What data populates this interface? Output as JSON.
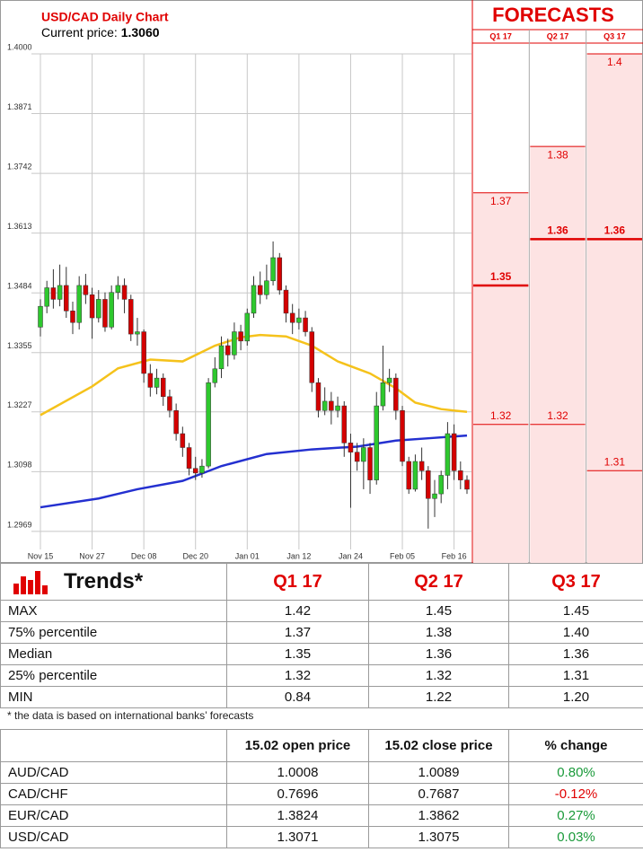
{
  "chart_data": [
    {
      "type": "candlestick",
      "title": "USD/CAD Daily Chart",
      "price_label": "Current price:",
      "current_price": "1.3060",
      "categories": [
        "Nov 15",
        null,
        null,
        null,
        null,
        null,
        null,
        null,
        "Nov 27",
        null,
        null,
        null,
        null,
        null,
        null,
        null,
        "Dec 08",
        null,
        null,
        null,
        null,
        null,
        null,
        null,
        "Dec 20",
        null,
        null,
        null,
        null,
        null,
        null,
        null,
        "Jan 01",
        null,
        null,
        null,
        null,
        null,
        null,
        null,
        "Jan 12",
        null,
        null,
        null,
        null,
        null,
        null,
        null,
        "Jan 24",
        null,
        null,
        null,
        null,
        null,
        null,
        null,
        "Feb 05",
        null,
        null,
        null,
        null,
        null,
        null,
        null,
        "Feb 16",
        null,
        null
      ],
      "open": [
        1.341,
        1.3455,
        1.3495,
        1.347,
        1.35,
        1.3445,
        1.342,
        1.35,
        1.348,
        1.343,
        1.347,
        1.341,
        1.3485,
        1.35,
        1.347,
        1.3395,
        1.34,
        1.331,
        1.328,
        1.33,
        1.326,
        1.323,
        1.318,
        1.315,
        1.3105,
        1.3095,
        1.311,
        1.329,
        1.332,
        1.337,
        1.335,
        1.34,
        1.338,
        1.344,
        1.35,
        1.348,
        1.351,
        1.356,
        1.349,
        1.344,
        1.342,
        1.343,
        1.34,
        1.329,
        1.323,
        1.325,
        1.323,
        1.324,
        1.316,
        1.314,
        1.312,
        1.315,
        1.308,
        1.324,
        1.329,
        1.33,
        1.323,
        1.312,
        1.306,
        1.312,
        1.31,
        1.304,
        1.305,
        1.309,
        1.318,
        1.31,
        1.308
      ],
      "high": [
        1.347,
        1.351,
        1.3535,
        1.3545,
        1.354,
        1.3465,
        1.352,
        1.3525,
        1.3495,
        1.349,
        1.3485,
        1.35,
        1.352,
        1.3515,
        1.348,
        1.343,
        1.3405,
        1.333,
        1.332,
        1.331,
        1.3275,
        1.3245,
        1.3195,
        1.316,
        1.313,
        1.3125,
        1.33,
        1.3345,
        1.339,
        1.3385,
        1.342,
        1.3415,
        1.345,
        1.352,
        1.353,
        1.3545,
        1.3595,
        1.357,
        1.35,
        1.346,
        1.345,
        1.3445,
        1.341,
        1.33,
        1.328,
        1.327,
        1.326,
        1.325,
        1.318,
        1.316,
        1.317,
        1.316,
        1.327,
        1.337,
        1.332,
        1.331,
        1.324,
        1.313,
        1.3135,
        1.315,
        1.311,
        1.308,
        1.31,
        1.3205,
        1.32,
        1.312,
        1.309
      ],
      "low": [
        1.339,
        1.344,
        1.345,
        1.3455,
        1.343,
        1.3395,
        1.3405,
        1.346,
        1.3385,
        1.342,
        1.34,
        1.3405,
        1.347,
        1.344,
        1.338,
        1.337,
        1.329,
        1.326,
        1.3265,
        1.324,
        1.3215,
        1.3165,
        1.313,
        1.309,
        1.308,
        1.3085,
        1.3105,
        1.328,
        1.33,
        1.3325,
        1.334,
        1.336,
        1.337,
        1.343,
        1.346,
        1.347,
        1.35,
        1.348,
        1.342,
        1.3395,
        1.3405,
        1.339,
        1.327,
        1.3215,
        1.322,
        1.32,
        1.3215,
        1.313,
        1.302,
        1.31,
        1.306,
        1.305,
        1.307,
        1.323,
        1.327,
        1.321,
        1.311,
        1.305,
        1.3055,
        1.308,
        1.2975,
        1.3,
        1.303,
        1.306,
        1.308,
        1.306,
        1.305
      ],
      "close": [
        1.3455,
        1.3495,
        1.347,
        1.35,
        1.3445,
        1.342,
        1.35,
        1.348,
        1.343,
        1.347,
        1.341,
        1.3485,
        1.35,
        1.347,
        1.3395,
        1.34,
        1.331,
        1.328,
        1.33,
        1.326,
        1.323,
        1.318,
        1.315,
        1.3105,
        1.3095,
        1.311,
        1.329,
        1.332,
        1.337,
        1.335,
        1.34,
        1.338,
        1.344,
        1.35,
        1.348,
        1.351,
        1.356,
        1.349,
        1.344,
        1.342,
        1.343,
        1.34,
        1.329,
        1.323,
        1.325,
        1.323,
        1.324,
        1.316,
        1.314,
        1.312,
        1.315,
        1.308,
        1.324,
        1.329,
        1.33,
        1.323,
        1.312,
        1.306,
        1.312,
        1.31,
        1.304,
        1.305,
        1.309,
        1.318,
        1.31,
        1.308,
        1.306
      ],
      "up_color": "#2ec82e",
      "down_color": "#d40000",
      "lines": [
        {
          "color": "#f5c21b",
          "x": [
            0,
            8,
            12,
            17,
            22,
            27,
            31,
            34,
            38,
            42,
            46,
            51,
            55,
            58,
            62,
            66
          ],
          "values": [
            1.322,
            1.3282,
            1.3321,
            1.334,
            1.3336,
            1.337,
            1.3388,
            1.3393,
            1.339,
            1.337,
            1.3336,
            1.331,
            1.3278,
            1.3247,
            1.3233,
            1.3227
          ]
        },
        {
          "color": "#2430d0",
          "x": [
            0,
            9,
            15,
            22,
            28,
            35,
            42,
            49,
            55,
            60,
            66
          ],
          "values": [
            1.3021,
            1.304,
            1.306,
            1.3078,
            1.311,
            1.3136,
            1.3146,
            1.3152,
            1.3165,
            1.317,
            1.3176
          ]
        }
      ],
      "ylim": [
        1.293,
        1.4
      ],
      "yticks": [
        {
          "value": 1.4,
          "label": "1.4000"
        },
        1.3871,
        1.3742,
        1.3613,
        1.3484,
        1.3355,
        1.3227,
        1.3098,
        1.2969
      ],
      "grid": true
    },
    {
      "type": "range",
      "title": "FORECASTS",
      "categories": [
        "Q1 17",
        "Q2 17",
        "Q3 17"
      ],
      "high": [
        1.37,
        1.38,
        1.4
      ],
      "median": [
        1.35,
        1.36,
        1.36
      ],
      "low": [
        1.32,
        1.32,
        1.31
      ],
      "color": "#e00000",
      "fill": "#fde3e3"
    }
  ],
  "trends": {
    "title": "Trends*",
    "columns": [
      "Q1 17",
      "Q2 17",
      "Q3 17"
    ],
    "rows": [
      [
        "MAX",
        "1.42",
        "1.45",
        "1.45"
      ],
      [
        "75% percentile",
        "1.37",
        "1.38",
        "1.40"
      ],
      [
        "Median",
        "1.35",
        "1.36",
        "1.36"
      ],
      [
        "25% percentile",
        "1.32",
        "1.32",
        "1.31"
      ],
      [
        "MIN",
        "0.84",
        "1.22",
        "1.20"
      ]
    ],
    "footnote": "* the data is based on international banks’ forecasts"
  },
  "prices": {
    "columns": [
      "15.02 open price",
      "15.02 close price",
      "% change"
    ],
    "rows": [
      [
        "AUD/CAD",
        "1.0008",
        "1.0089",
        "0.80%"
      ],
      [
        "CAD/CHF",
        "0.7696",
        "0.7687",
        "-0.12%"
      ],
      [
        "EUR/CAD",
        "1.3824",
        "1.3862",
        "0.27%"
      ],
      [
        "USD/CAD",
        "1.3071",
        "1.3075",
        "0.03%"
      ]
    ]
  }
}
